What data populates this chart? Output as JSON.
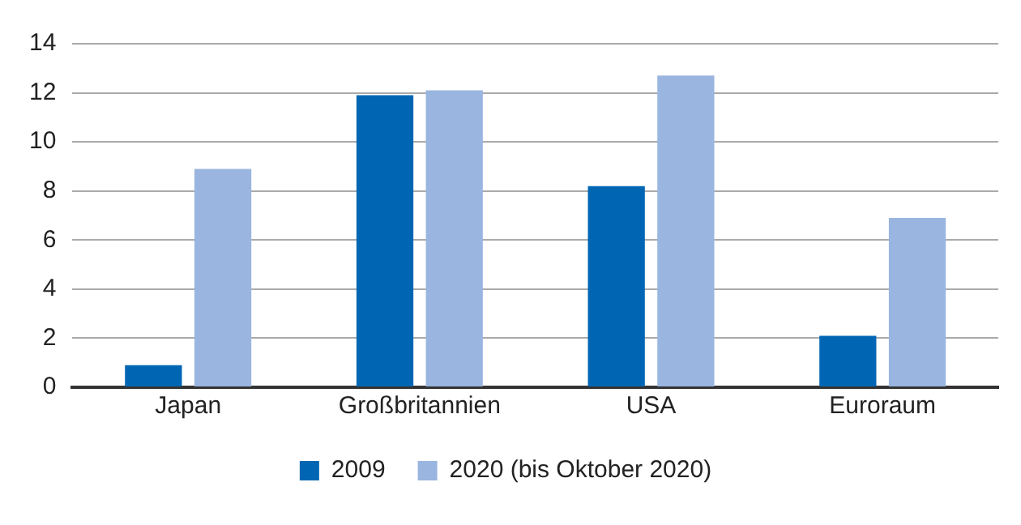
{
  "chart_data": {
    "type": "bar",
    "categories": [
      "Japan",
      "Großbritannien",
      "USA",
      "Euroraum"
    ],
    "series": [
      {
        "name": "2009",
        "color": "#0066b3",
        "values": [
          0.9,
          11.9,
          8.2,
          2.1
        ]
      },
      {
        "name": "2020 (bis Oktober 2020)",
        "color": "#99b5e0",
        "values": [
          8.9,
          12.1,
          12.7,
          6.9
        ]
      }
    ],
    "ylim": [
      0,
      14
    ],
    "yticks": [
      0,
      2,
      4,
      6,
      8,
      10,
      12,
      14
    ],
    "grid": "y",
    "legend": "bottom"
  }
}
